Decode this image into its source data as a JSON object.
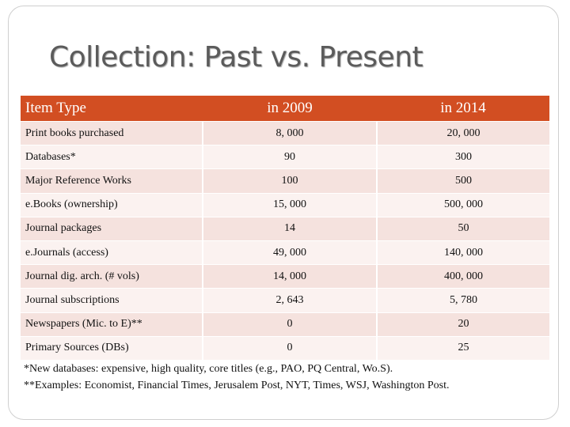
{
  "title": "Collection: Past  vs. Present",
  "table": {
    "headers": [
      "Item  Type",
      "in 2009",
      "in 2014"
    ],
    "rows": [
      [
        "Print books purchased",
        "8, 000",
        "20, 000"
      ],
      [
        "Databases*",
        "90",
        "300"
      ],
      [
        "Major Reference Works",
        "100",
        "500"
      ],
      [
        "e.Books (ownership)",
        "15, 000",
        "500, 000"
      ],
      [
        "Journal packages",
        "14",
        "50"
      ],
      [
        "e.Journals (access)",
        "49, 000",
        "140, 000"
      ],
      [
        "Journal dig. arch. (# vols)",
        "14, 000",
        "400, 000"
      ],
      [
        "Journal subscriptions",
        "2, 643",
        "5, 780"
      ],
      [
        "Newspapers (Mic. to E)**",
        "0",
        "20"
      ],
      [
        "Primary Sources (DBs)",
        "0",
        "25"
      ]
    ]
  },
  "footnotes": [
    "*New databases: expensive, high quality, core titles (e.g., PAO, PQ Central, Wo.S).",
    "**Examples: Economist, Financial Times, Jerusalem Post, NYT, Times, WSJ, Washington Post."
  ],
  "colors": {
    "header_bg": "#d24e22",
    "row_odd": "#f5e2de",
    "row_even": "#fbf2f0",
    "title": "#5b5b5b"
  }
}
